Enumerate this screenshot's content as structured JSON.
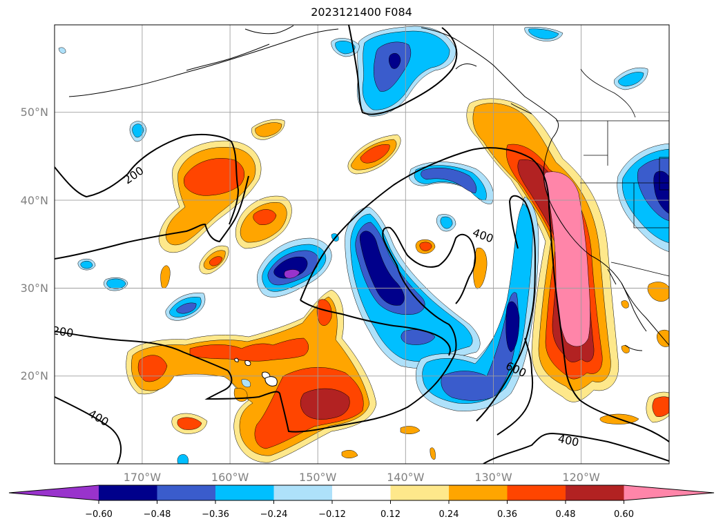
{
  "title": "2023121400 F084",
  "lat_ticks": [
    "50°N",
    "40°N",
    "30°N",
    "20°N"
  ],
  "lon_ticks": [
    "170°W",
    "160°W",
    "150°W",
    "140°W",
    "130°W",
    "120°W"
  ],
  "colorbar": {
    "ticks": [
      "−0.60",
      "−0.48",
      "−0.36",
      "−0.24",
      "−0.12",
      "0.12",
      "0.24",
      "0.36",
      "0.48",
      "0.60"
    ],
    "colors": [
      "#9933cc",
      "#00008b",
      "#3a5ccc",
      "#00bfff",
      "#aee1fa",
      "#ffffff",
      "#fee88b",
      "#ffa500",
      "#ff4500",
      "#b22222",
      "#ff85a9"
    ]
  },
  "contour_labels": [
    "200",
    "200",
    "400",
    "400",
    "400",
    "600"
  ],
  "palette": {
    "p1": "#fee88b",
    "p2": "#ffa500",
    "p3": "#ff4500",
    "p4": "#b22222",
    "p5": "#ff85a9",
    "n1": "#aee1fa",
    "n2": "#00bfff",
    "n3": "#3a5ccc",
    "n4": "#00008b",
    "n5": "#9933cc"
  }
}
